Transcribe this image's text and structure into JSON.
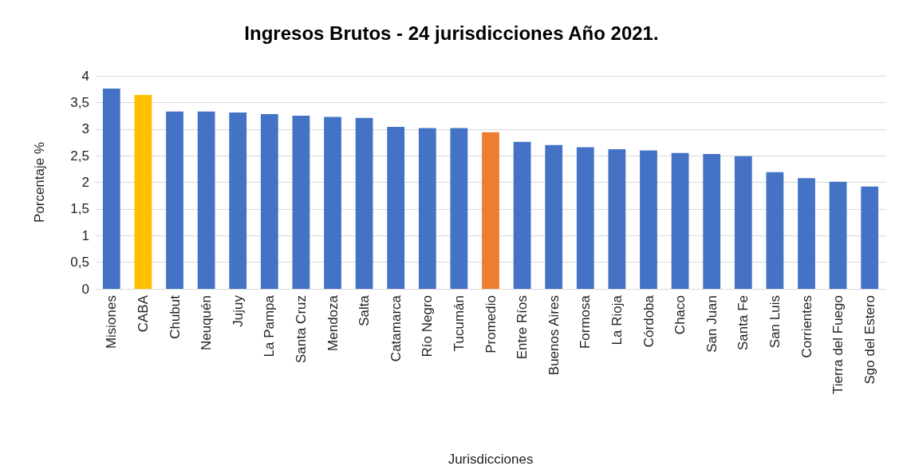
{
  "chart_data": {
    "type": "bar",
    "title": "Ingresos Brutos - 24 jurisdicciones Año 2021.",
    "xlabel": "Jurisdicciones",
    "ylabel": "Porcentaje %",
    "categories": [
      "Misiones",
      "CABA",
      "Chubut",
      "Neuquén",
      "Jujuy",
      "La Pampa",
      "Santa Cruz",
      "Mendoza",
      "Salta",
      "Catamarca",
      "Río Negro",
      "Tucumán",
      "Promedio",
      "Entre Ríos",
      "Buenos Aires",
      "Formosa",
      "La Rioja",
      "Córdoba",
      "Chaco",
      "San Juan",
      "Santa Fe",
      "San Luis",
      "Corrientes",
      "Tierra del Fuego",
      "Sgo del Estero"
    ],
    "values": [
      3.76,
      3.64,
      3.33,
      3.33,
      3.31,
      3.28,
      3.25,
      3.23,
      3.21,
      3.04,
      3.02,
      3.02,
      2.94,
      2.76,
      2.7,
      2.66,
      2.62,
      2.6,
      2.55,
      2.53,
      2.49,
      2.19,
      2.08,
      2.01,
      1.92
    ],
    "colors": [
      "#4472c4",
      "#ffc000",
      "#4472c4",
      "#4472c4",
      "#4472c4",
      "#4472c4",
      "#4472c4",
      "#4472c4",
      "#4472c4",
      "#4472c4",
      "#4472c4",
      "#4472c4",
      "#ed7d31",
      "#4472c4",
      "#4472c4",
      "#4472c4",
      "#4472c4",
      "#4472c4",
      "#4472c4",
      "#4472c4",
      "#4472c4",
      "#4472c4",
      "#4472c4",
      "#4472c4",
      "#4472c4"
    ],
    "ylim": [
      0,
      4
    ],
    "yticks": [
      0,
      {
        "value": 0.5,
        "label": "0,5"
      },
      1,
      {
        "value": 1.5,
        "label": "1,5"
      },
      2,
      {
        "value": 2.5,
        "label": "2,5"
      },
      3,
      {
        "value": 3.5,
        "label": "3,5"
      },
      4
    ],
    "grid": "y"
  }
}
